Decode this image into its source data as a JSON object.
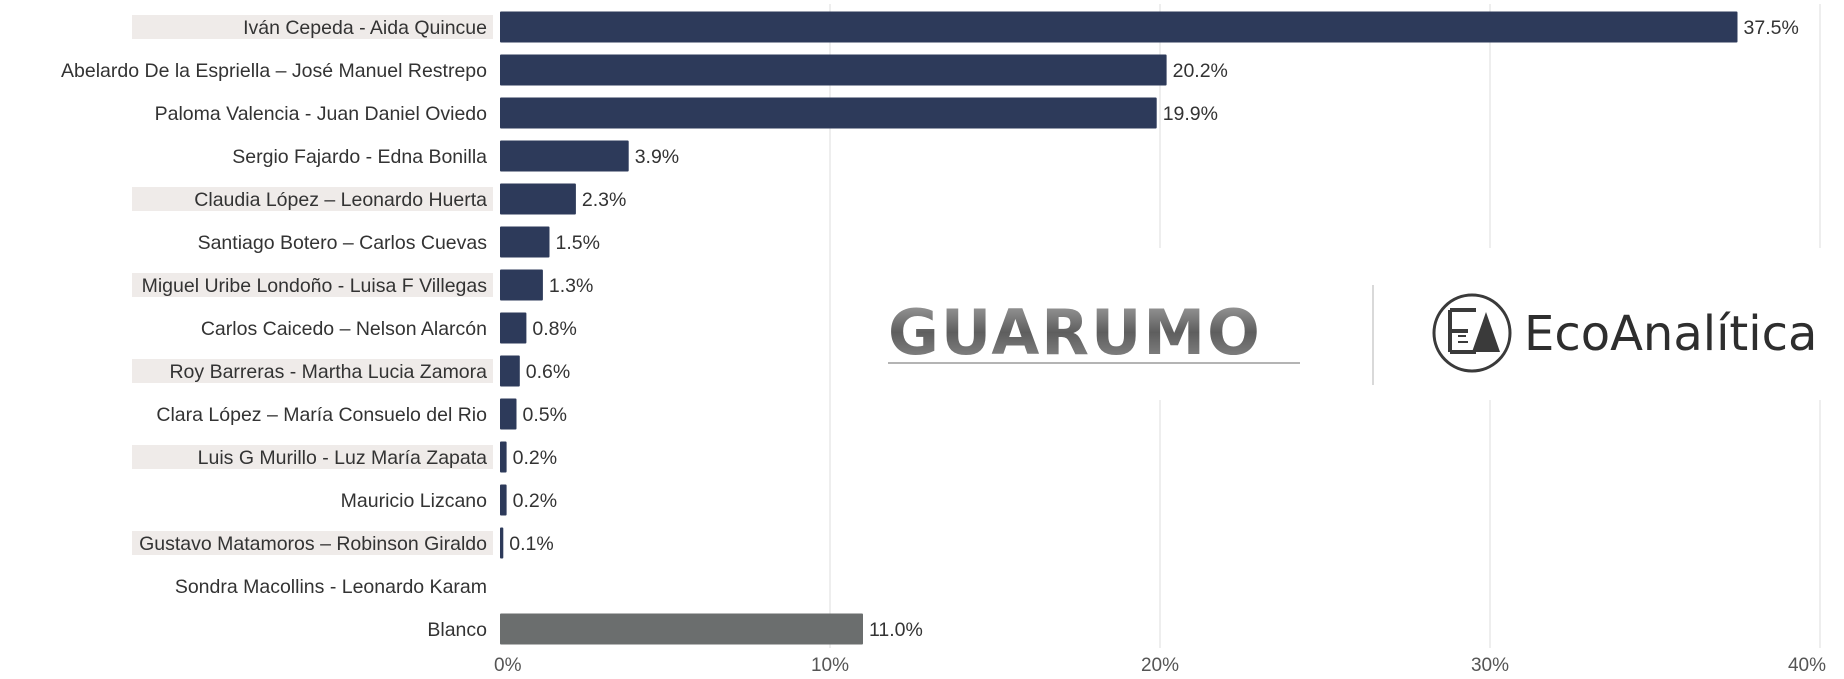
{
  "chart_data": {
    "type": "bar",
    "orientation": "horizontal",
    "categories": [
      "Iván Cepeda - Aida Quincue",
      "Abelardo De la Espriella – José Manuel Restrepo",
      "Paloma Valencia - Juan Daniel Oviedo",
      "Sergio Fajardo - Edna Bonilla",
      "Claudia López – Leonardo Huerta",
      "Santiago Botero – Carlos Cuevas",
      "Miguel Uribe Londoño - Luisa F Villegas",
      "Carlos Caicedo – Nelson Alarcón",
      "Roy Barreras - Martha Lucia Zamora",
      "Clara López – María Consuelo del Rio",
      "Luis G Murillo - Luz María Zapata",
      "Mauricio Lizcano",
      "Gustavo Matamoros – Robinson Giraldo",
      "Sondra Macollins - Leonardo Karam",
      "Blanco"
    ],
    "values": [
      37.5,
      20.2,
      19.9,
      3.9,
      2.3,
      1.5,
      1.3,
      0.8,
      0.6,
      0.5,
      0.2,
      0.2,
      0.1,
      null,
      11.0
    ],
    "value_labels": [
      "37.5%",
      "20.2%",
      "19.9%",
      "3.9%",
      "2.3%",
      "1.5%",
      "1.3%",
      "0.8%",
      "0.6%",
      "0.5%",
      "0.2%",
      "0.2%",
      "0.1%",
      "",
      "11.0%"
    ],
    "highlighted_labels": [
      true,
      false,
      false,
      false,
      true,
      false,
      true,
      false,
      true,
      false,
      true,
      false,
      true,
      false,
      false
    ],
    "bar_colors": [
      "#2d3a5a",
      "#2d3a5a",
      "#2d3a5a",
      "#2d3a5a",
      "#2d3a5a",
      "#2d3a5a",
      "#2d3a5a",
      "#2d3a5a",
      "#2d3a5a",
      "#2d3a5a",
      "#2d3a5a",
      "#2d3a5a",
      "#2d3a5a",
      "#2d3a5a",
      "#6b6e6e"
    ],
    "xlim": [
      0,
      40
    ],
    "xticks": [
      0,
      10,
      20,
      30,
      40
    ],
    "xtick_labels": [
      "0%",
      "10%",
      "20%",
      "30%",
      "40%"
    ],
    "grid": "vertical",
    "title": "",
    "xlabel": "",
    "ylabel": ""
  },
  "logos": {
    "guarumo": "GUARUMO",
    "ecoanalitica": "EcoAnalítica"
  },
  "colors": {
    "bar": "#2d3a5a",
    "bar_blank": "#6b6e6e",
    "label_highlight": "#efebe9",
    "grid": "#dcdcdc"
  }
}
